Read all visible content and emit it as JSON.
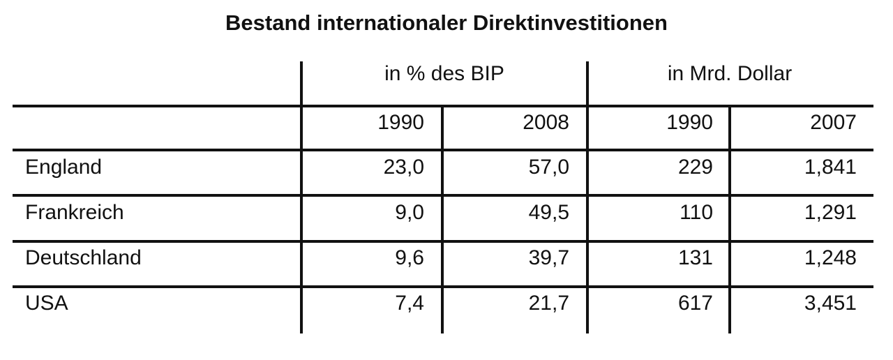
{
  "title": "Bestand internationaler Direktinvestitionen",
  "table": {
    "group_headers": [
      "in % des BIP",
      "in Mrd. Dollar"
    ],
    "years": [
      "1990",
      "2008",
      "1990",
      "2007"
    ],
    "rows": [
      [
        "England",
        "23,0",
        "57,0",
        "229",
        "1,841"
      ],
      [
        "Frankreich",
        "9,0",
        "49,5",
        "110",
        "1,291"
      ],
      [
        "Deutschland",
        "9,6",
        "39,7",
        "131",
        "1,248"
      ],
      [
        "USA",
        "7,4",
        "21,7",
        "617",
        "3,451"
      ]
    ]
  }
}
